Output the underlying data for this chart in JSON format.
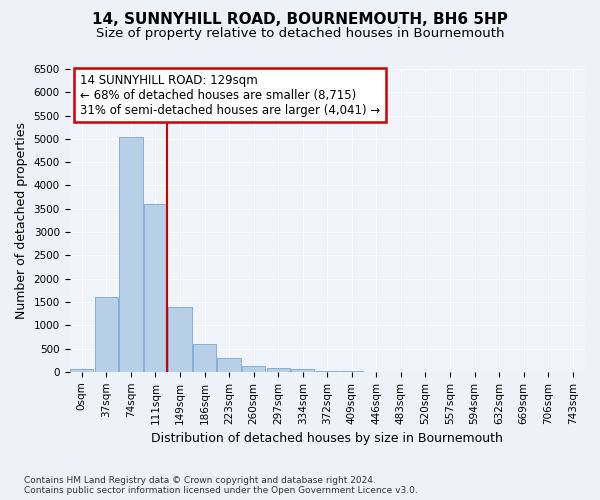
{
  "title": "14, SUNNYHILL ROAD, BOURNEMOUTH, BH6 5HP",
  "subtitle": "Size of property relative to detached houses in Bournemouth",
  "xlabel": "Distribution of detached houses by size in Bournemouth",
  "ylabel": "Number of detached properties",
  "bin_labels": [
    "0sqm",
    "37sqm",
    "74sqm",
    "111sqm",
    "149sqm",
    "186sqm",
    "223sqm",
    "260sqm",
    "297sqm",
    "334sqm",
    "372sqm",
    "409sqm",
    "446sqm",
    "483sqm",
    "520sqm",
    "557sqm",
    "594sqm",
    "632sqm",
    "669sqm",
    "706sqm",
    "743sqm"
  ],
  "bar_heights": [
    50,
    1600,
    5050,
    3600,
    1400,
    600,
    300,
    130,
    80,
    50,
    20,
    10,
    5,
    0,
    0,
    0,
    0,
    0,
    0,
    0,
    0
  ],
  "bar_color": "#b8cfe8",
  "bar_edge_color": "#6699cc",
  "vline_x": 3.48,
  "vline_color": "#cc0000",
  "annotation_text": "14 SUNNYHILL ROAD: 129sqm\n← 68% of detached houses are smaller (8,715)\n31% of semi-detached houses are larger (4,041) →",
  "annotation_box_color": "#cc0000",
  "annotation_facecolor": "#ffffff",
  "ylim": [
    0,
    6500
  ],
  "yticks": [
    0,
    500,
    1000,
    1500,
    2000,
    2500,
    3000,
    3500,
    4000,
    4500,
    5000,
    5500,
    6000,
    6500
  ],
  "footnote": "Contains HM Land Registry data © Crown copyright and database right 2024.\nContains public sector information licensed under the Open Government Licence v3.0.",
  "bg_color": "#edf2f8",
  "plot_bg_color": "#f0f4fa",
  "grid_color": "#ffffff",
  "title_fontsize": 11,
  "subtitle_fontsize": 9.5,
  "label_fontsize": 9,
  "tick_fontsize": 7.5,
  "footnote_fontsize": 6.5,
  "annotation_fontsize": 8.5
}
